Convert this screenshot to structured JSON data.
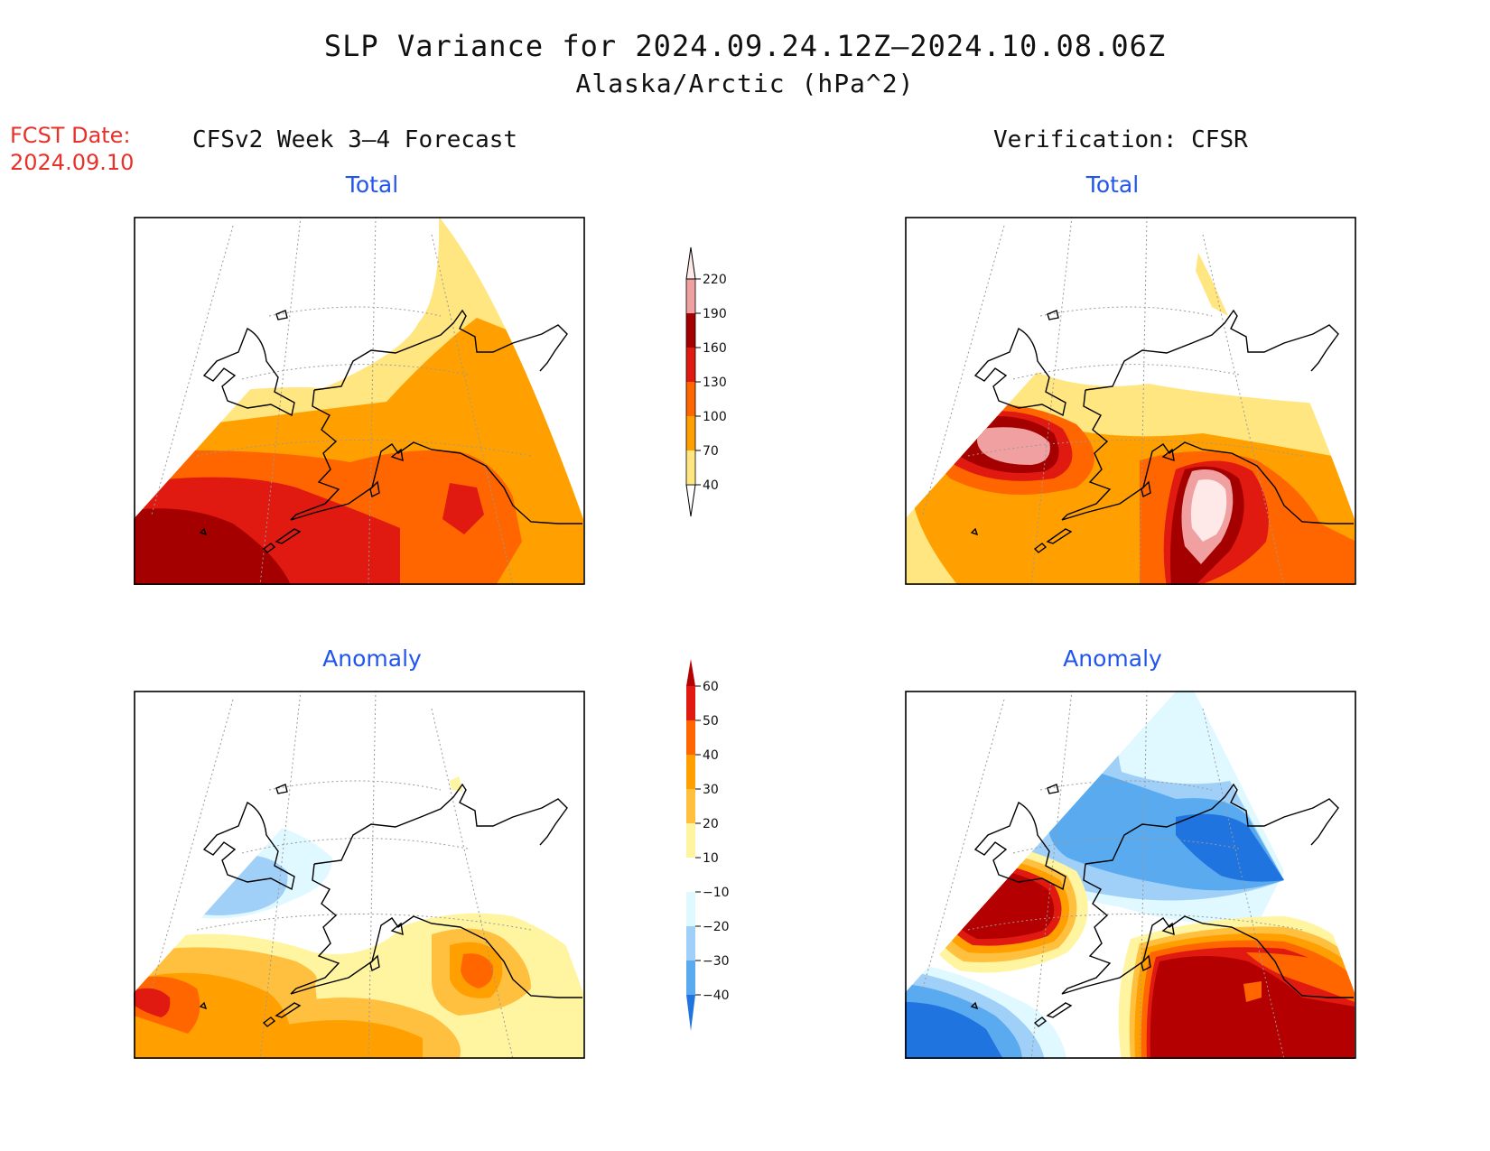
{
  "title": "SLP Variance for 2024.09.24.12Z–2024.10.08.06Z",
  "subtitle": "Alaska/Arctic (hPa^2)",
  "fcst": {
    "label": "FCST Date:",
    "date": "2024.09.10"
  },
  "left_heading": "CFSv2 Week 3–4 Forecast",
  "right_heading": "Verification: CFSR",
  "panels": {
    "forecast_total": {
      "title": "Total"
    },
    "verification_total": {
      "title": "Total"
    },
    "forecast_anomaly": {
      "title": "Anomaly"
    },
    "verification_anomaly": {
      "title": "Anomaly"
    }
  },
  "colorbar_total": {
    "levels": [
      "40",
      "70",
      "100",
      "130",
      "160",
      "190",
      "220"
    ],
    "colors": [
      "#ffe680",
      "#ffa000",
      "#ff6600",
      "#e01a10",
      "#a50000",
      "#f0a0a0",
      "#ffe8e8"
    ]
  },
  "colorbar_anomaly": {
    "levels": [
      "60",
      "50",
      "40",
      "30",
      "20",
      "10",
      "−10",
      "−20",
      "−30",
      "−40"
    ],
    "colors": [
      "#b40000",
      "#e01a10",
      "#ff6600",
      "#ffa000",
      "#ffc040",
      "#fff4a0",
      "#ffffff",
      "#e0f8ff",
      "#a0d0f8",
      "#5aaaf0",
      "#1f74e0"
    ]
  },
  "palette": {
    "outline": "#000000",
    "coast": "#000000",
    "grid": "#999999"
  }
}
